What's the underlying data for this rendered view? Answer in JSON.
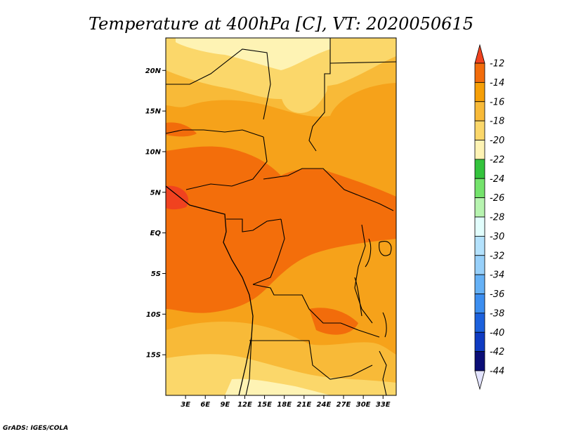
{
  "title": "Temperature at 400hPa [C], VT: 2020050615",
  "credit": "GrADS: IGES/COLA",
  "map": {
    "lon_range": [
      0,
      35
    ],
    "lat_range": [
      -20,
      24
    ],
    "lon_ticks": [
      {
        "value": 3,
        "label": "3E"
      },
      {
        "value": 6,
        "label": "6E"
      },
      {
        "value": 9,
        "label": "9E"
      },
      {
        "value": 12,
        "label": "12E"
      },
      {
        "value": 15,
        "label": "15E"
      },
      {
        "value": 18,
        "label": "18E"
      },
      {
        "value": 21,
        "label": "21E"
      },
      {
        "value": 24,
        "label": "24E"
      },
      {
        "value": 27,
        "label": "27E"
      },
      {
        "value": 30,
        "label": "30E"
      },
      {
        "value": 33,
        "label": "33E"
      }
    ],
    "lat_ticks": [
      {
        "value": 20,
        "label": "20N"
      },
      {
        "value": 15,
        "label": "15N"
      },
      {
        "value": 10,
        "label": "10N"
      },
      {
        "value": 5,
        "label": "5N"
      },
      {
        "value": 0,
        "label": "EQ"
      },
      {
        "value": -5,
        "label": "5S"
      },
      {
        "value": -10,
        "label": "10S"
      },
      {
        "value": -15,
        "label": "15S"
      }
    ]
  },
  "colorbar": {
    "levels": [
      "-12",
      "-14",
      "-16",
      "-18",
      "-20",
      "-22",
      "-24",
      "-26",
      "-28",
      "-30",
      "-32",
      "-34",
      "-36",
      "-38",
      "-40",
      "-42",
      "-44"
    ],
    "colors": [
      "#f0421f",
      "#f26c0b",
      "#f69f07",
      "#f8ba38",
      "#fbd76a",
      "#fef3b4",
      "#33c33c",
      "#74e36c",
      "#b7f4b0",
      "#e2fefd",
      "#b4e2fd",
      "#97d0fa",
      "#65b1f6",
      "#3c8ef0",
      "#1c61dd",
      "#0f3bc2",
      "#0b0e77",
      "#e3e4ff"
    ]
  }
}
